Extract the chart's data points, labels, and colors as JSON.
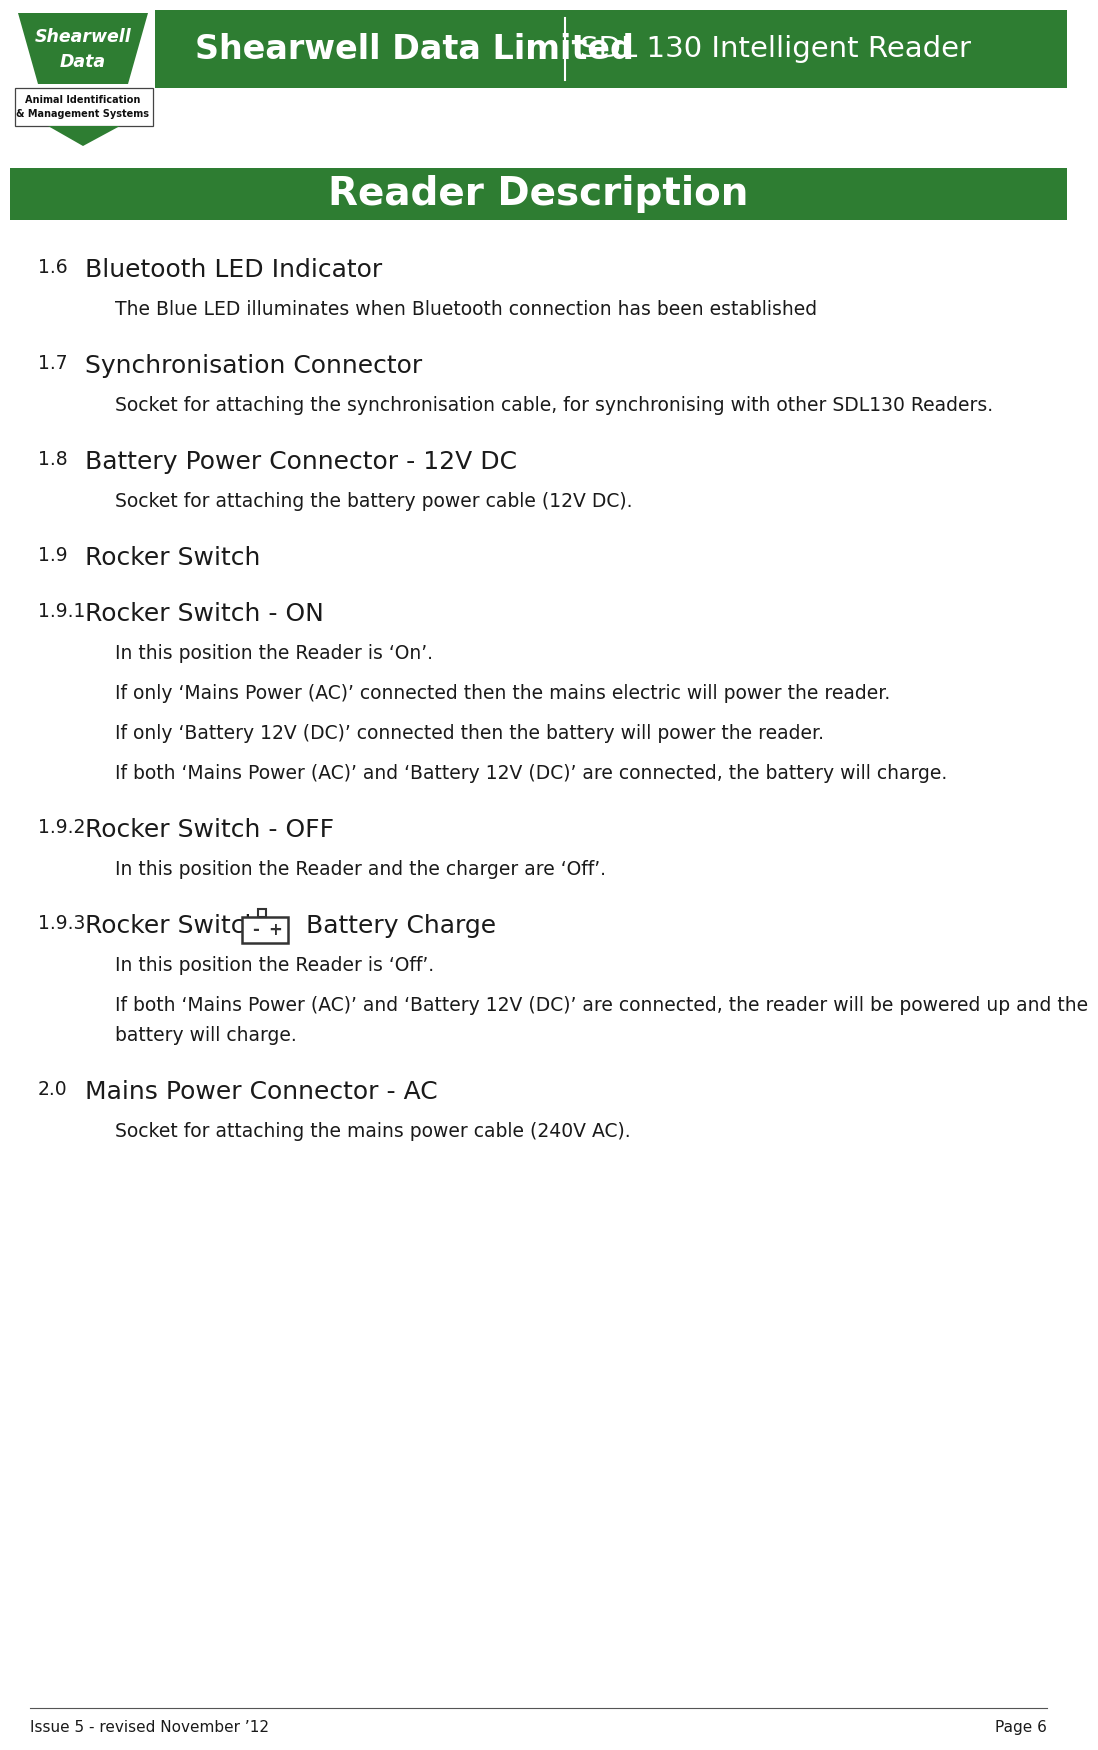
{
  "header_green": "#2e7d32",
  "header_text_color": "#ffffff",
  "company_name": "Shearwell Data Limited",
  "product_name": "SDL 130 Intelligent Reader",
  "page_title": "Reader Description",
  "footer_left": "Issue 5 - revised November ’12",
  "footer_right": "Page 6",
  "logo_text1": "Shearwell",
  "logo_text2": "Data",
  "logo_sub1": "Animal Identification",
  "logo_sub2": "& Management Systems",
  "background_color": "#ffffff",
  "text_color": "#1a1a1a",
  "body_items": [
    {
      "number": "1.6",
      "heading": "Bluetooth LED Indicator",
      "body": [
        "The Blue LED illuminates when Bluetooth connection has been established"
      ]
    },
    {
      "number": "1.7",
      "heading": "Synchronisation Connector",
      "body": [
        "Socket for attaching the synchronisation cable, for synchronising with other SDL130 Readers."
      ]
    },
    {
      "number": "1.8",
      "heading": "Battery Power Connector - 12V DC",
      "body": [
        "Socket for attaching the battery power cable (12V DC)."
      ]
    },
    {
      "number": "1.9",
      "heading": "Rocker Switch",
      "body": []
    },
    {
      "number": "1.9.1",
      "heading": "Rocker Switch - ON",
      "body": [
        "In this position the Reader is ‘On’.",
        "If only ‘Mains Power (AC)’ connected then the mains electric will power the reader.",
        "If only ‘Battery 12V (DC)’ connected then the battery will power the reader.",
        "If both ‘Mains Power (AC)’ and ‘Battery 12V (DC)’ are connected, the battery will charge."
      ]
    },
    {
      "number": "1.9.2",
      "heading": "Rocker Switch - OFF",
      "body": [
        "In this position the Reader and the charger are ‘Off’."
      ]
    },
    {
      "number": "1.9.3",
      "heading": "Rocker Switch -",
      "heading_has_battery_icon": true,
      "heading_suffix": "Battery Charge",
      "body": [
        "In this position the Reader is ‘Off’.",
        "If both ‘Mains Power (AC)’ and ‘Battery 12V (DC)’ are connected, the reader will be powered up and the battery will charge."
      ]
    },
    {
      "number": "2.0",
      "heading": "Mains Power Connector - AC",
      "body": [
        "Socket for attaching the mains power cable (240V AC)."
      ]
    }
  ]
}
